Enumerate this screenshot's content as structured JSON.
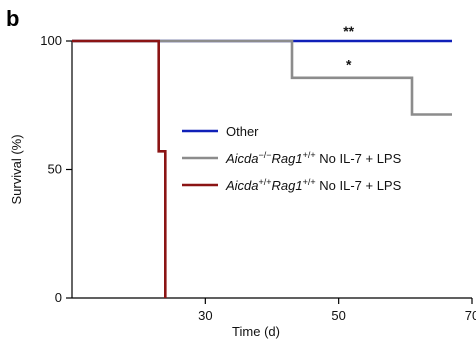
{
  "panel_label": "b",
  "chart_data": {
    "type": "line",
    "step": true,
    "xlabel": "Time (d)",
    "ylabel": "Survival (%)",
    "xlim": [
      10,
      70
    ],
    "ylim": [
      0,
      100
    ],
    "x_ticks": [
      {
        "value": 30,
        "label": "30"
      },
      {
        "value": 50,
        "label": "50"
      },
      {
        "value": 70,
        "label": "70"
      }
    ],
    "y_ticks": [
      {
        "value": 0,
        "label": "0"
      },
      {
        "value": 50,
        "label": "50"
      },
      {
        "value": 100,
        "label": "100"
      }
    ],
    "grid": false,
    "legend_position": "center-right",
    "series": [
      {
        "name": "Other",
        "legend_parts": [
          {
            "text": "Other",
            "italic": false,
            "sup": false
          }
        ],
        "color": "#1020b8",
        "x": [
          10,
          67
        ],
        "y": [
          100,
          100
        ]
      },
      {
        "name": "Aicda−/−Rag1+/+ No IL-7 + LPS",
        "legend_parts": [
          {
            "text": "Aicda",
            "italic": true,
            "sup": false
          },
          {
            "text": "−/−",
            "italic": false,
            "sup": true
          },
          {
            "text": "Rag1",
            "italic": true,
            "sup": false
          },
          {
            "text": "+/+",
            "italic": false,
            "sup": true
          },
          {
            "text": " No IL-7 + LPS",
            "italic": false,
            "sup": false
          }
        ],
        "color": "#8c8c8c",
        "x": [
          10,
          43,
          43,
          61,
          61,
          67
        ],
        "y": [
          100,
          100,
          85.7,
          85.7,
          71.4,
          71.4
        ]
      },
      {
        "name": "Aicda+/+Rag1+/+ No IL-7 + LPS",
        "legend_parts": [
          {
            "text": "Aicda",
            "italic": true,
            "sup": false
          },
          {
            "text": "+/+",
            "italic": false,
            "sup": true
          },
          {
            "text": "Rag1",
            "italic": true,
            "sup": false
          },
          {
            "text": "+/+",
            "italic": false,
            "sup": true
          },
          {
            "text": " No IL-7 + LPS",
            "italic": false,
            "sup": false
          }
        ],
        "color": "#8b1414",
        "x": [
          10,
          23,
          23,
          24,
          24
        ],
        "y": [
          100,
          100,
          57.1,
          57.1,
          0
        ]
      }
    ],
    "annotations": [
      {
        "text": "**",
        "x": 51.5,
        "y": 102
      },
      {
        "text": "*",
        "x": 51.5,
        "y": 89
      }
    ]
  }
}
